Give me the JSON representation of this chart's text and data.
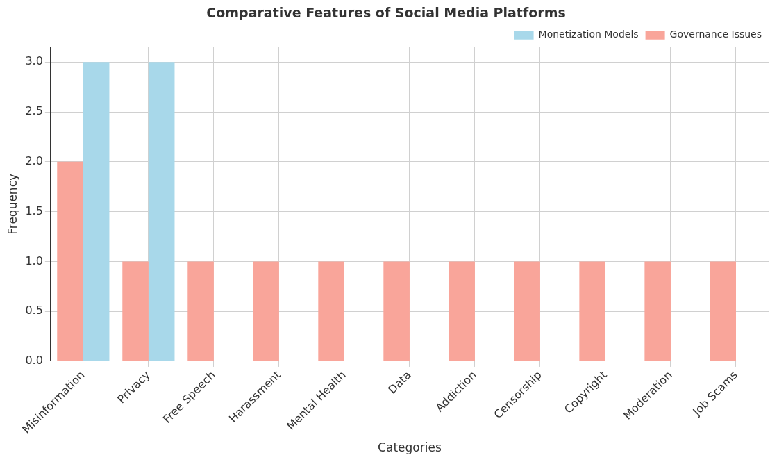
{
  "chart_data": {
    "type": "bar",
    "title": "Comparative Features of Social Media Platforms",
    "xlabel": "Categories",
    "ylabel": "Frequency",
    "categories": [
      "Misinformation",
      "Privacy",
      "Free Speech",
      "Harassment",
      "Mental Health",
      "Data",
      "Addiction",
      "Censorship",
      "Copyright",
      "Moderation",
      "Job Scams"
    ],
    "series": [
      {
        "name": "Monetization Models",
        "color": "#a8d8ea",
        "values": [
          3,
          3,
          0,
          0,
          0,
          0,
          0,
          0,
          0,
          0,
          0
        ]
      },
      {
        "name": "Governance Issues",
        "color": "#f9a59a",
        "values": [
          2,
          1,
          1,
          1,
          1,
          1,
          1,
          1,
          1,
          1,
          1
        ]
      }
    ],
    "ylim": [
      0,
      3.15
    ],
    "yticks": [
      {
        "value": 0,
        "label": "0.0"
      },
      {
        "value": 0.5,
        "label": "0.5"
      },
      {
        "value": 1,
        "label": "1.0"
      },
      {
        "value": 1.5,
        "label": "1.5"
      },
      {
        "value": 2,
        "label": "2.0"
      },
      {
        "value": 2.5,
        "label": "2.5"
      },
      {
        "value": 3,
        "label": "3.0"
      }
    ],
    "grid": true,
    "legend": "top right"
  }
}
